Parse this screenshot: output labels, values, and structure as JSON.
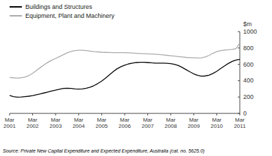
{
  "chart_data": {
    "type": "line",
    "ylabel": "$m",
    "source": "Source: Private New Capital Expenditure and Expected Expenditure, Australia (cat. no. 5625.0)",
    "categories": [
      "Mar\n2001",
      null,
      null,
      null,
      null,
      null,
      "Mar\n2002",
      null,
      null,
      null,
      null,
      null,
      "Mar\n2003",
      null,
      null,
      null,
      null,
      null,
      "Mar\n2004",
      null,
      null,
      null,
      null,
      null,
      "Mar\n2005",
      null,
      null,
      null,
      null,
      null,
      "Mar\n2006",
      null,
      null,
      null,
      null,
      null,
      "Mar\n2007",
      null,
      null,
      null,
      null,
      null,
      "Mar\n2008",
      null,
      null,
      null,
      null,
      null,
      "Mar\n2009",
      null,
      null,
      null,
      null,
      null,
      "Mar\n2010",
      null,
      null,
      null,
      null,
      null,
      "Mar\n2011"
    ],
    "series": [
      {
        "name": "Buildings and Structures",
        "color": "#000000",
        "values": [
          220,
          205,
          198,
          200,
          205,
          210,
          218,
          228,
          238,
          250,
          262,
          275,
          285,
          295,
          305,
          308,
          305,
          300,
          298,
          300,
          308,
          320,
          340,
          365,
          395,
          430,
          470,
          510,
          545,
          570,
          590,
          605,
          615,
          622,
          625,
          625,
          622,
          618,
          615,
          615,
          615,
          612,
          608,
          600,
          585,
          562,
          535,
          508,
          483,
          465,
          455,
          458,
          468,
          488,
          515,
          548,
          580,
          610,
          635,
          652,
          660
        ]
      },
      {
        "name": "Equipment, Plant and Machinery",
        "color": "#aaaaaa",
        "values": [
          440,
          435,
          432,
          435,
          445,
          462,
          490,
          525,
          560,
          595,
          625,
          650,
          672,
          695,
          718,
          740,
          758,
          768,
          772,
          772,
          768,
          762,
          756,
          752,
          748,
          746,
          744,
          743,
          742,
          742,
          742,
          740,
          738,
          735,
          732,
          730,
          728,
          726,
          724,
          720,
          715,
          710,
          705,
          700,
          695,
          690,
          685,
          682,
          680,
          678,
          680,
          690,
          710,
          735,
          755,
          768,
          775,
          778,
          782,
          792,
          860
        ]
      }
    ],
    "ylim": [
      0,
      1000
    ],
    "yticks": [
      0,
      200,
      400,
      600,
      800,
      1000
    ],
    "grid": false,
    "legend": "upper left"
  }
}
